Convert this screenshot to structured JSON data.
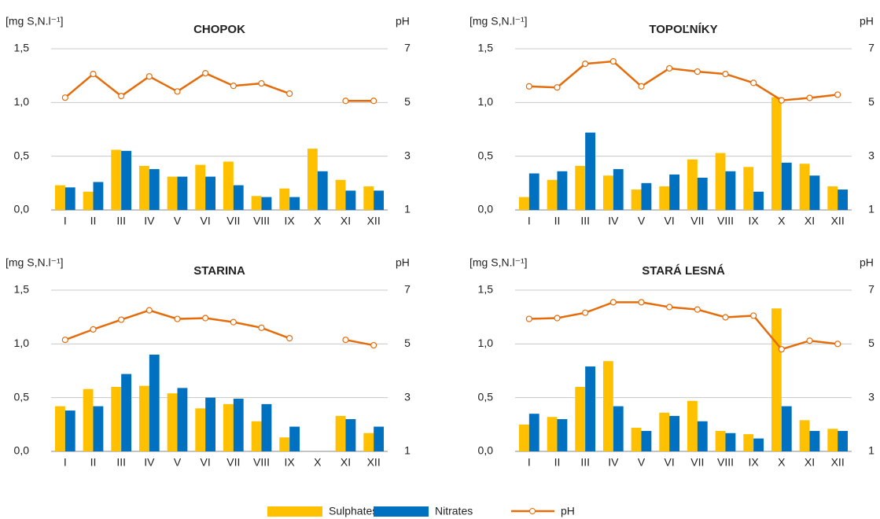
{
  "chart_data": [
    {
      "type": "bar",
      "title": "CHOPOK",
      "ylabel": "[mg S,N.l⁻¹]",
      "y2label": "pH",
      "categories": [
        "I",
        "II",
        "III",
        "IV",
        "V",
        "VI",
        "VII",
        "VIII",
        "IX",
        "X",
        "XI",
        "XII"
      ],
      "series": [
        {
          "name": "Sulphates",
          "color": "#ffc000",
          "values": [
            0.23,
            0.17,
            0.56,
            0.41,
            0.31,
            0.42,
            0.45,
            0.13,
            0.2,
            0.57,
            0.28,
            0.22
          ]
        },
        {
          "name": "Nitrates",
          "color": "#0070c0",
          "values": [
            0.21,
            0.26,
            0.55,
            0.38,
            0.31,
            0.31,
            0.23,
            0.12,
            0.12,
            0.36,
            0.18,
            0.18
          ]
        },
        {
          "name": "pH",
          "color": "#e46c0a",
          "type": "line",
          "axis": "y2",
          "values": [
            5.18,
            6.06,
            5.24,
            5.97,
            5.41,
            6.09,
            5.62,
            5.71,
            5.33,
            null,
            5.06,
            5.06
          ]
        }
      ],
      "ylim": [
        0,
        1.5
      ],
      "yticks": [
        {
          "value": 0,
          "label": "0,0"
        },
        {
          "value": 0.5,
          "label": "0,5"
        },
        {
          "value": 1,
          "label": "1,0"
        },
        {
          "value": 1.5,
          "label": "1,5"
        }
      ],
      "y2lim": [
        1,
        7
      ],
      "y2ticks": [
        1,
        3,
        5,
        7
      ],
      "grid": true
    },
    {
      "type": "bar",
      "title": "TOPOĽNÍKY",
      "ylabel": "[mg S,N.l⁻¹]",
      "y2label": "pH",
      "categories": [
        "I",
        "II",
        "III",
        "IV",
        "V",
        "VI",
        "VII",
        "VIII",
        "IX",
        "X",
        "XI",
        "XII"
      ],
      "series": [
        {
          "name": "Sulphates",
          "color": "#ffc000",
          "values": [
            0.12,
            0.28,
            0.41,
            0.32,
            0.19,
            0.22,
            0.47,
            0.53,
            0.4,
            1.05,
            0.43,
            0.22
          ]
        },
        {
          "name": "Nitrates",
          "color": "#0070c0",
          "values": [
            0.34,
            0.36,
            0.72,
            0.38,
            0.25,
            0.33,
            0.3,
            0.36,
            0.17,
            0.44,
            0.32,
            0.19
          ]
        },
        {
          "name": "pH",
          "color": "#e46c0a",
          "type": "line",
          "axis": "y2",
          "values": [
            5.6,
            5.56,
            6.44,
            6.53,
            5.6,
            6.27,
            6.15,
            6.06,
            5.73,
            5.08,
            5.17,
            5.29
          ]
        }
      ],
      "ylim": [
        0,
        1.5
      ],
      "yticks": [
        {
          "value": 0,
          "label": "0,0"
        },
        {
          "value": 0.5,
          "label": "0,5"
        },
        {
          "value": 1,
          "label": "1,0"
        },
        {
          "value": 1.5,
          "label": "1,5"
        }
      ],
      "y2lim": [
        1,
        7
      ],
      "y2ticks": [
        1,
        3,
        5,
        7
      ],
      "grid": true
    },
    {
      "type": "bar",
      "title": "STARINA",
      "ylabel": "[mg S,N.l⁻¹]",
      "y2label": "pH",
      "categories": [
        "I",
        "II",
        "III",
        "IV",
        "V",
        "VI",
        "VII",
        "VIII",
        "IX",
        "X",
        "XI",
        "XII"
      ],
      "series": [
        {
          "name": "Sulphates",
          "color": "#ffc000",
          "values": [
            0.42,
            0.58,
            0.6,
            0.61,
            0.54,
            0.4,
            0.44,
            0.28,
            0.13,
            null,
            0.33,
            0.17
          ]
        },
        {
          "name": "Nitrates",
          "color": "#0070c0",
          "values": [
            0.38,
            0.42,
            0.72,
            0.9,
            0.59,
            0.5,
            0.49,
            0.44,
            0.23,
            null,
            0.3,
            0.23
          ]
        },
        {
          "name": "pH",
          "color": "#e46c0a",
          "type": "line",
          "axis": "y2",
          "values": [
            5.15,
            5.54,
            5.9,
            6.25,
            5.93,
            5.96,
            5.81,
            5.6,
            5.21,
            null,
            5.15,
            4.95
          ]
        }
      ],
      "ylim": [
        0,
        1.5
      ],
      "yticks": [
        {
          "value": 0,
          "label": "0,0"
        },
        {
          "value": 0.5,
          "label": "0,5"
        },
        {
          "value": 1,
          "label": "1,0"
        },
        {
          "value": 1.5,
          "label": "1,5"
        }
      ],
      "y2lim": [
        1,
        7
      ],
      "y2ticks": [
        1,
        3,
        5,
        7
      ],
      "grid": true
    },
    {
      "type": "bar",
      "title": "STARÁ LESNÁ",
      "ylabel": "[mg S,N.l⁻¹]",
      "y2label": "pH",
      "categories": [
        "I",
        "II",
        "III",
        "IV",
        "V",
        "VI",
        "VII",
        "VIII",
        "IX",
        "X",
        "XI",
        "XII"
      ],
      "series": [
        {
          "name": "Sulphates",
          "color": "#ffc000",
          "values": [
            0.25,
            0.32,
            0.6,
            0.84,
            0.22,
            0.36,
            0.47,
            0.19,
            0.16,
            1.33,
            0.29,
            0.21
          ]
        },
        {
          "name": "Nitrates",
          "color": "#0070c0",
          "values": [
            0.35,
            0.3,
            0.79,
            0.42,
            0.19,
            0.33,
            0.28,
            0.17,
            0.12,
            0.42,
            0.19,
            0.19
          ]
        },
        {
          "name": "pH",
          "color": "#e46c0a",
          "type": "line",
          "axis": "y2",
          "values": [
            5.93,
            5.96,
            6.16,
            6.55,
            6.55,
            6.37,
            6.28,
            5.99,
            6.05,
            4.8,
            5.12,
            5.0
          ]
        }
      ],
      "ylim": [
        0,
        1.5
      ],
      "yticks": [
        {
          "value": 0,
          "label": "0,0"
        },
        {
          "value": 0.5,
          "label": "0,5"
        },
        {
          "value": 1,
          "label": "1,0"
        },
        {
          "value": 1.5,
          "label": "1,5"
        }
      ],
      "y2lim": [
        1,
        7
      ],
      "y2ticks": [
        1,
        3,
        5,
        7
      ],
      "grid": true
    }
  ]
}
